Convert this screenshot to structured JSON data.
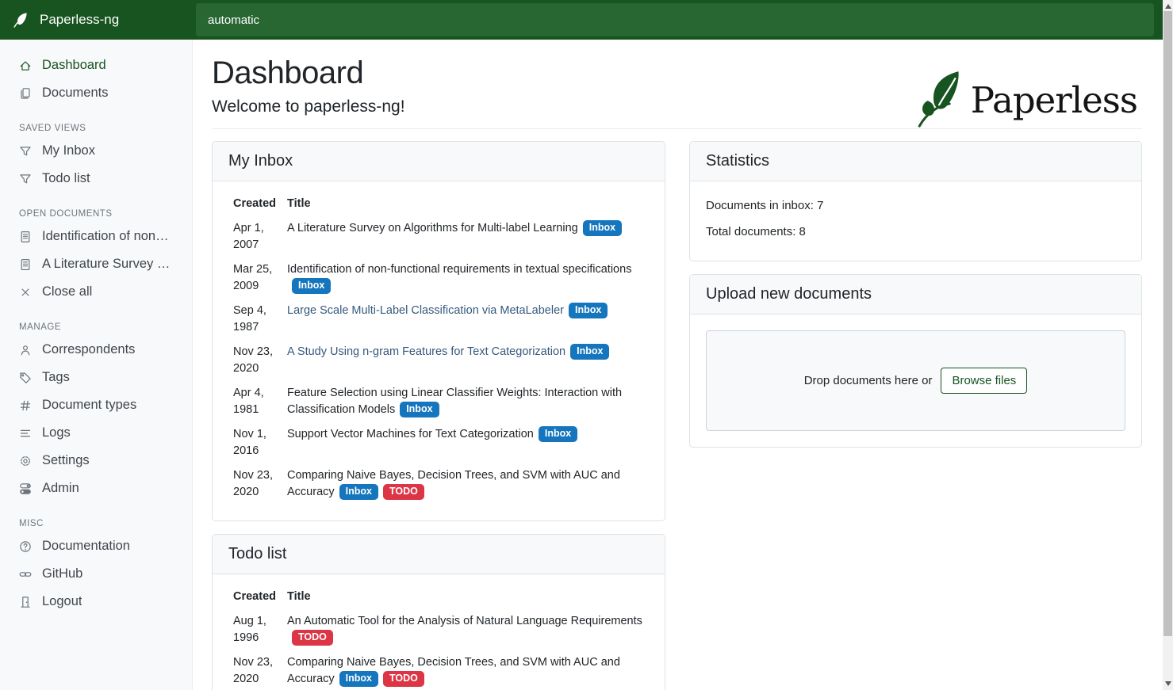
{
  "navbar": {
    "brand": "Paperless-ng",
    "search_value": "automatic"
  },
  "sidebar": {
    "primary": [
      {
        "icon": "home-icon",
        "label": "Dashboard",
        "active": true
      },
      {
        "icon": "documents-icon",
        "label": "Documents",
        "active": false
      }
    ],
    "sections": [
      {
        "title": "SAVED VIEWS",
        "items": [
          {
            "icon": "funnel-icon",
            "label": "My Inbox"
          },
          {
            "icon": "funnel-icon",
            "label": "Todo list"
          }
        ]
      },
      {
        "title": "OPEN DOCUMENTS",
        "items": [
          {
            "icon": "file-text-icon",
            "label": "Identification of non-functio..."
          },
          {
            "icon": "file-text-icon",
            "label": "A Literature Survey on Algori..."
          },
          {
            "icon": "close-icon",
            "label": "Close all"
          }
        ]
      },
      {
        "title": "MANAGE",
        "items": [
          {
            "icon": "person-icon",
            "label": "Correspondents"
          },
          {
            "icon": "tag-icon",
            "label": "Tags"
          },
          {
            "icon": "hash-icon",
            "label": "Document types"
          },
          {
            "icon": "list-icon",
            "label": "Logs"
          },
          {
            "icon": "gear-icon",
            "label": "Settings"
          },
          {
            "icon": "toggles-icon",
            "label": "Admin"
          }
        ]
      },
      {
        "title": "MISC",
        "items": [
          {
            "icon": "question-circle-icon",
            "label": "Documentation"
          },
          {
            "icon": "link-icon",
            "label": "GitHub"
          },
          {
            "icon": "door-icon",
            "label": "Logout"
          }
        ]
      }
    ]
  },
  "page": {
    "title": "Dashboard",
    "subtitle": "Welcome to paperless-ng!",
    "logo_text": "Paperless"
  },
  "inbox_card": {
    "title": "My Inbox",
    "columns": [
      "Created",
      "Title"
    ],
    "rows": [
      {
        "created": "Apr 1, 2007",
        "title": "A Literature Survey on Algorithms for Multi-label Learning",
        "tags": [
          "Inbox"
        ],
        "link_color": "dark"
      },
      {
        "created": "Mar 25, 2009",
        "title": "Identification of non-functional requirements in textual specifications",
        "tags": [
          "Inbox"
        ],
        "link_color": "dark"
      },
      {
        "created": "Sep 4, 1987",
        "title": "Large Scale Multi-Label Classification via MetaLabeler",
        "tags": [
          "Inbox"
        ],
        "link_color": "blue"
      },
      {
        "created": "Nov 23, 2020",
        "title": "A Study Using n-gram Features for Text Categorization",
        "tags": [
          "Inbox"
        ],
        "link_color": "blue"
      },
      {
        "created": "Apr 4, 1981",
        "title": "Feature Selection using Linear Classifier Weights: Interaction with Classification Models",
        "tags": [
          "Inbox"
        ],
        "link_color": "dark"
      },
      {
        "created": "Nov 1, 2016",
        "title": "Support Vector Machines for Text Categorization",
        "tags": [
          "Inbox"
        ],
        "link_color": "dark"
      },
      {
        "created": "Nov 23, 2020",
        "title": "Comparing Naive Bayes, Decision Trees, and SVM with AUC and Accuracy",
        "tags": [
          "Inbox",
          "TODO"
        ],
        "link_color": "dark"
      }
    ]
  },
  "todo_card": {
    "title": "Todo list",
    "columns": [
      "Created",
      "Title"
    ],
    "rows": [
      {
        "created": "Aug 1, 1996",
        "title": "An Automatic Tool for the Analysis of Natural Language Requirements",
        "tags": [
          "TODO"
        ],
        "link_color": "dark"
      },
      {
        "created": "Nov 23, 2020",
        "title": "Comparing Naive Bayes, Decision Trees, and SVM with AUC and Accuracy",
        "tags": [
          "Inbox",
          "TODO"
        ],
        "link_color": "dark"
      }
    ]
  },
  "statistics": {
    "title": "Statistics",
    "lines": [
      "Documents in inbox: 7",
      "Total documents: 8"
    ]
  },
  "upload": {
    "title": "Upload new documents",
    "drop_text": "Drop documents here or",
    "browse_label": "Browse files"
  },
  "colors": {
    "navbar_green": "#17541f",
    "search_green": "#286632",
    "accent_green": "#17541f",
    "tag_inbox": "#1576bd",
    "tag_todo": "#dc3545",
    "title_link_dark": "#212529",
    "title_link_blue": "#35597e"
  }
}
